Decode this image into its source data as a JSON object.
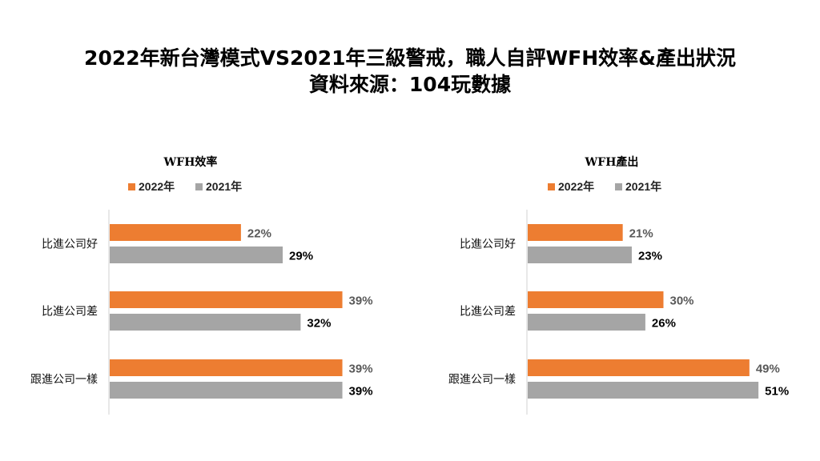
{
  "title": {
    "line1": "2022年新台灣模式VS2021年三級警戒，職人自評WFH效率&產出狀況",
    "line2": "資料來源：104玩數據"
  },
  "legend": [
    "2022年",
    "2021年"
  ],
  "colors": {
    "2022年": "#ED7D31",
    "2021年": "#A5A5A5",
    "label2022": "#595959",
    "label2021": "#000000"
  },
  "chart_data": [
    {
      "type": "bar",
      "orientation": "horizontal",
      "title": "WFH效率",
      "categories": [
        "比進公司好",
        "比進公司差",
        "跟進公司一樣"
      ],
      "series": [
        {
          "name": "2022年",
          "values": [
            22,
            39,
            39
          ]
        },
        {
          "name": "2021年",
          "values": [
            29,
            32,
            39
          ]
        }
      ],
      "value_format": "percent",
      "legend_position": "top",
      "grid": false
    },
    {
      "type": "bar",
      "orientation": "horizontal",
      "title": "WFH產出",
      "categories": [
        "比進公司好",
        "比進公司差",
        "跟進公司一樣"
      ],
      "series": [
        {
          "name": "2022年",
          "values": [
            21,
            30,
            49
          ]
        },
        {
          "name": "2021年",
          "values": [
            23,
            26,
            51
          ]
        }
      ],
      "value_format": "percent",
      "legend_position": "top",
      "grid": false
    }
  ]
}
